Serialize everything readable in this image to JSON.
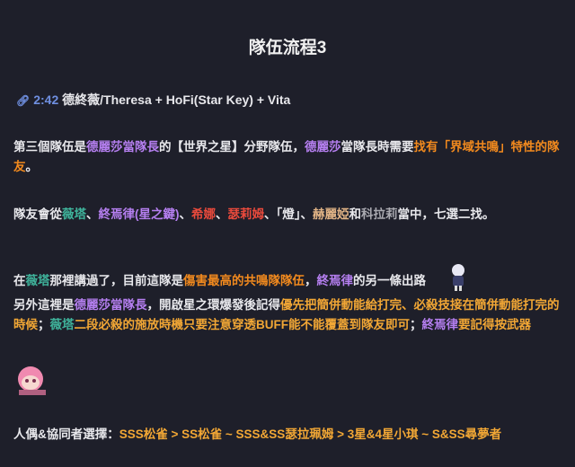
{
  "title": "隊伍流程3",
  "link": {
    "icon": "link-icon",
    "timestamp": "2:42",
    "text": "德終薇/Theresa + HoFi(Star Key) + Vita"
  },
  "paragraphs": [
    {
      "segments": [
        {
          "t": "第三個隊伍是",
          "c": "white"
        },
        {
          "t": "德麗莎當隊長",
          "c": "purple"
        },
        {
          "t": "的【世界之星】分野隊伍，",
          "c": "white"
        },
        {
          "t": "德麗莎",
          "c": "purple"
        },
        {
          "t": "當隊長時需要",
          "c": "white"
        },
        {
          "t": "找有「界域共鳴」特性的隊友",
          "c": "orange"
        },
        {
          "t": "。",
          "c": "white"
        }
      ]
    },
    {
      "segments": [
        {
          "t": "隊友會從",
          "c": "white"
        },
        {
          "t": "薇塔",
          "c": "teal"
        },
        {
          "t": "、",
          "c": "white"
        },
        {
          "t": "終焉律(星之鍵)",
          "c": "purple"
        },
        {
          "t": "、",
          "c": "white"
        },
        {
          "t": "希娜",
          "c": "red"
        },
        {
          "t": "、",
          "c": "white"
        },
        {
          "t": "瑟莉姆",
          "c": "red"
        },
        {
          "t": "、「燈」、",
          "c": "white"
        },
        {
          "t": "赫麗婭",
          "c": "tan"
        },
        {
          "t": "和",
          "c": "white"
        },
        {
          "t": "科拉莉",
          "c": "gray"
        },
        {
          "t": "當中，七選二找。",
          "c": "white"
        }
      ]
    },
    {
      "segments": [
        {
          "t": "在",
          "c": "white"
        },
        {
          "t": "薇塔",
          "c": "teal"
        },
        {
          "t": "那裡講過了，目前這隊是",
          "c": "white"
        },
        {
          "t": "傷害最高的共鳴隊隊伍",
          "c": "orange"
        },
        {
          "t": "，",
          "c": "white"
        },
        {
          "t": "終焉律",
          "c": "purple"
        },
        {
          "t": "的另一條出路",
          "c": "white"
        }
      ]
    },
    {
      "segments": [
        {
          "t": "另外這裡是",
          "c": "white"
        },
        {
          "t": "德麗莎當隊長",
          "c": "purple"
        },
        {
          "t": "，開啟星之環爆發後記得",
          "c": "white"
        },
        {
          "t": "優先把簡併動能給打完、必殺技接在簡併動能打完的時候",
          "c": "gold"
        },
        {
          "t": "；",
          "c": "white"
        },
        {
          "t": "薇塔",
          "c": "teal"
        },
        {
          "t": "二段必殺的施放時機只要注意穿透BUFF能不能覆蓋到隊友即可",
          "c": "gold"
        },
        {
          "t": "；",
          "c": "white"
        },
        {
          "t": "終焉律",
          "c": "purple"
        },
        {
          "t": "要記得按武器",
          "c": "gold"
        }
      ]
    },
    {
      "segments": [
        {
          "t": "人偶&協同者選擇：",
          "c": "white"
        },
        {
          "t": "SSS松雀 > SS松雀 ~ SSS&SS瑟拉珮姆 > 3星&4星小琪 ~ S&SS尋夢者",
          "c": "gold"
        }
      ]
    }
  ],
  "colors": {
    "background": "#1e1f2a",
    "purple": "#b57ff0",
    "orange": "#f28a1e",
    "teal": "#3fb39b",
    "red": "#ea4a3c",
    "gold": "#f2a735",
    "link": "#6f8fe0"
  }
}
